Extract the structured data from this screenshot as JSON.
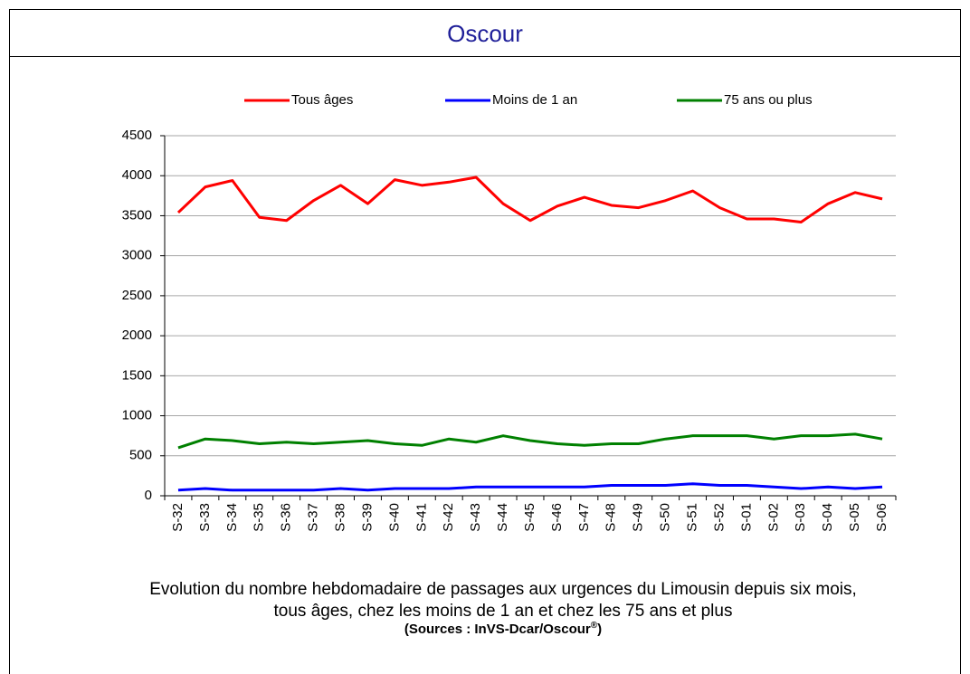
{
  "header": {
    "title": "Oscour"
  },
  "chart_data": {
    "type": "line",
    "categories": [
      "S-32",
      "S-33",
      "S-34",
      "S-35",
      "S-36",
      "S-37",
      "S-38",
      "S-39",
      "S-40",
      "S-41",
      "S-42",
      "S-43",
      "S-44",
      "S-45",
      "S-46",
      "S-47",
      "S-48",
      "S-49",
      "S-50",
      "S-51",
      "S-52",
      "S-01",
      "S-02",
      "S-03",
      "S-04",
      "S-05",
      "S-06"
    ],
    "series": [
      {
        "name": "Tous âges",
        "color": "#ff0000",
        "values": [
          3540,
          3860,
          3940,
          3480,
          3440,
          3690,
          3880,
          3650,
          3950,
          3880,
          3920,
          3980,
          3650,
          3440,
          3620,
          3730,
          3630,
          3600,
          3690,
          3810,
          3600,
          3460,
          3460,
          3420,
          3650,
          3790,
          3710
        ]
      },
      {
        "name": "Moins de 1 an",
        "color": "#0000ff",
        "values": [
          70,
          90,
          70,
          70,
          70,
          70,
          90,
          70,
          90,
          90,
          90,
          110,
          110,
          110,
          110,
          110,
          130,
          130,
          130,
          150,
          130,
          130,
          110,
          90,
          110,
          90,
          110
        ]
      },
      {
        "name": "75 ans ou plus",
        "color": "#008000",
        "values": [
          600,
          710,
          690,
          650,
          670,
          650,
          670,
          690,
          650,
          630,
          710,
          670,
          750,
          690,
          650,
          630,
          650,
          650,
          710,
          750,
          750,
          750,
          710,
          750,
          750,
          770,
          710
        ]
      }
    ],
    "ylim": [
      0,
      4500
    ],
    "yticks": [
      0,
      500,
      1000,
      1500,
      2000,
      2500,
      3000,
      3500,
      4000,
      4500
    ],
    "grid": true,
    "legend": "top",
    "caption": [
      "Evolution du nombre hebdomadaire de passages aux urgences du Limousin depuis six mois,",
      "tous âges, chez les moins de 1 an et chez les 75 ans et plus"
    ],
    "source": [
      "(Sources : InVS-Dcar/Oscour",
      "®",
      ")"
    ]
  }
}
